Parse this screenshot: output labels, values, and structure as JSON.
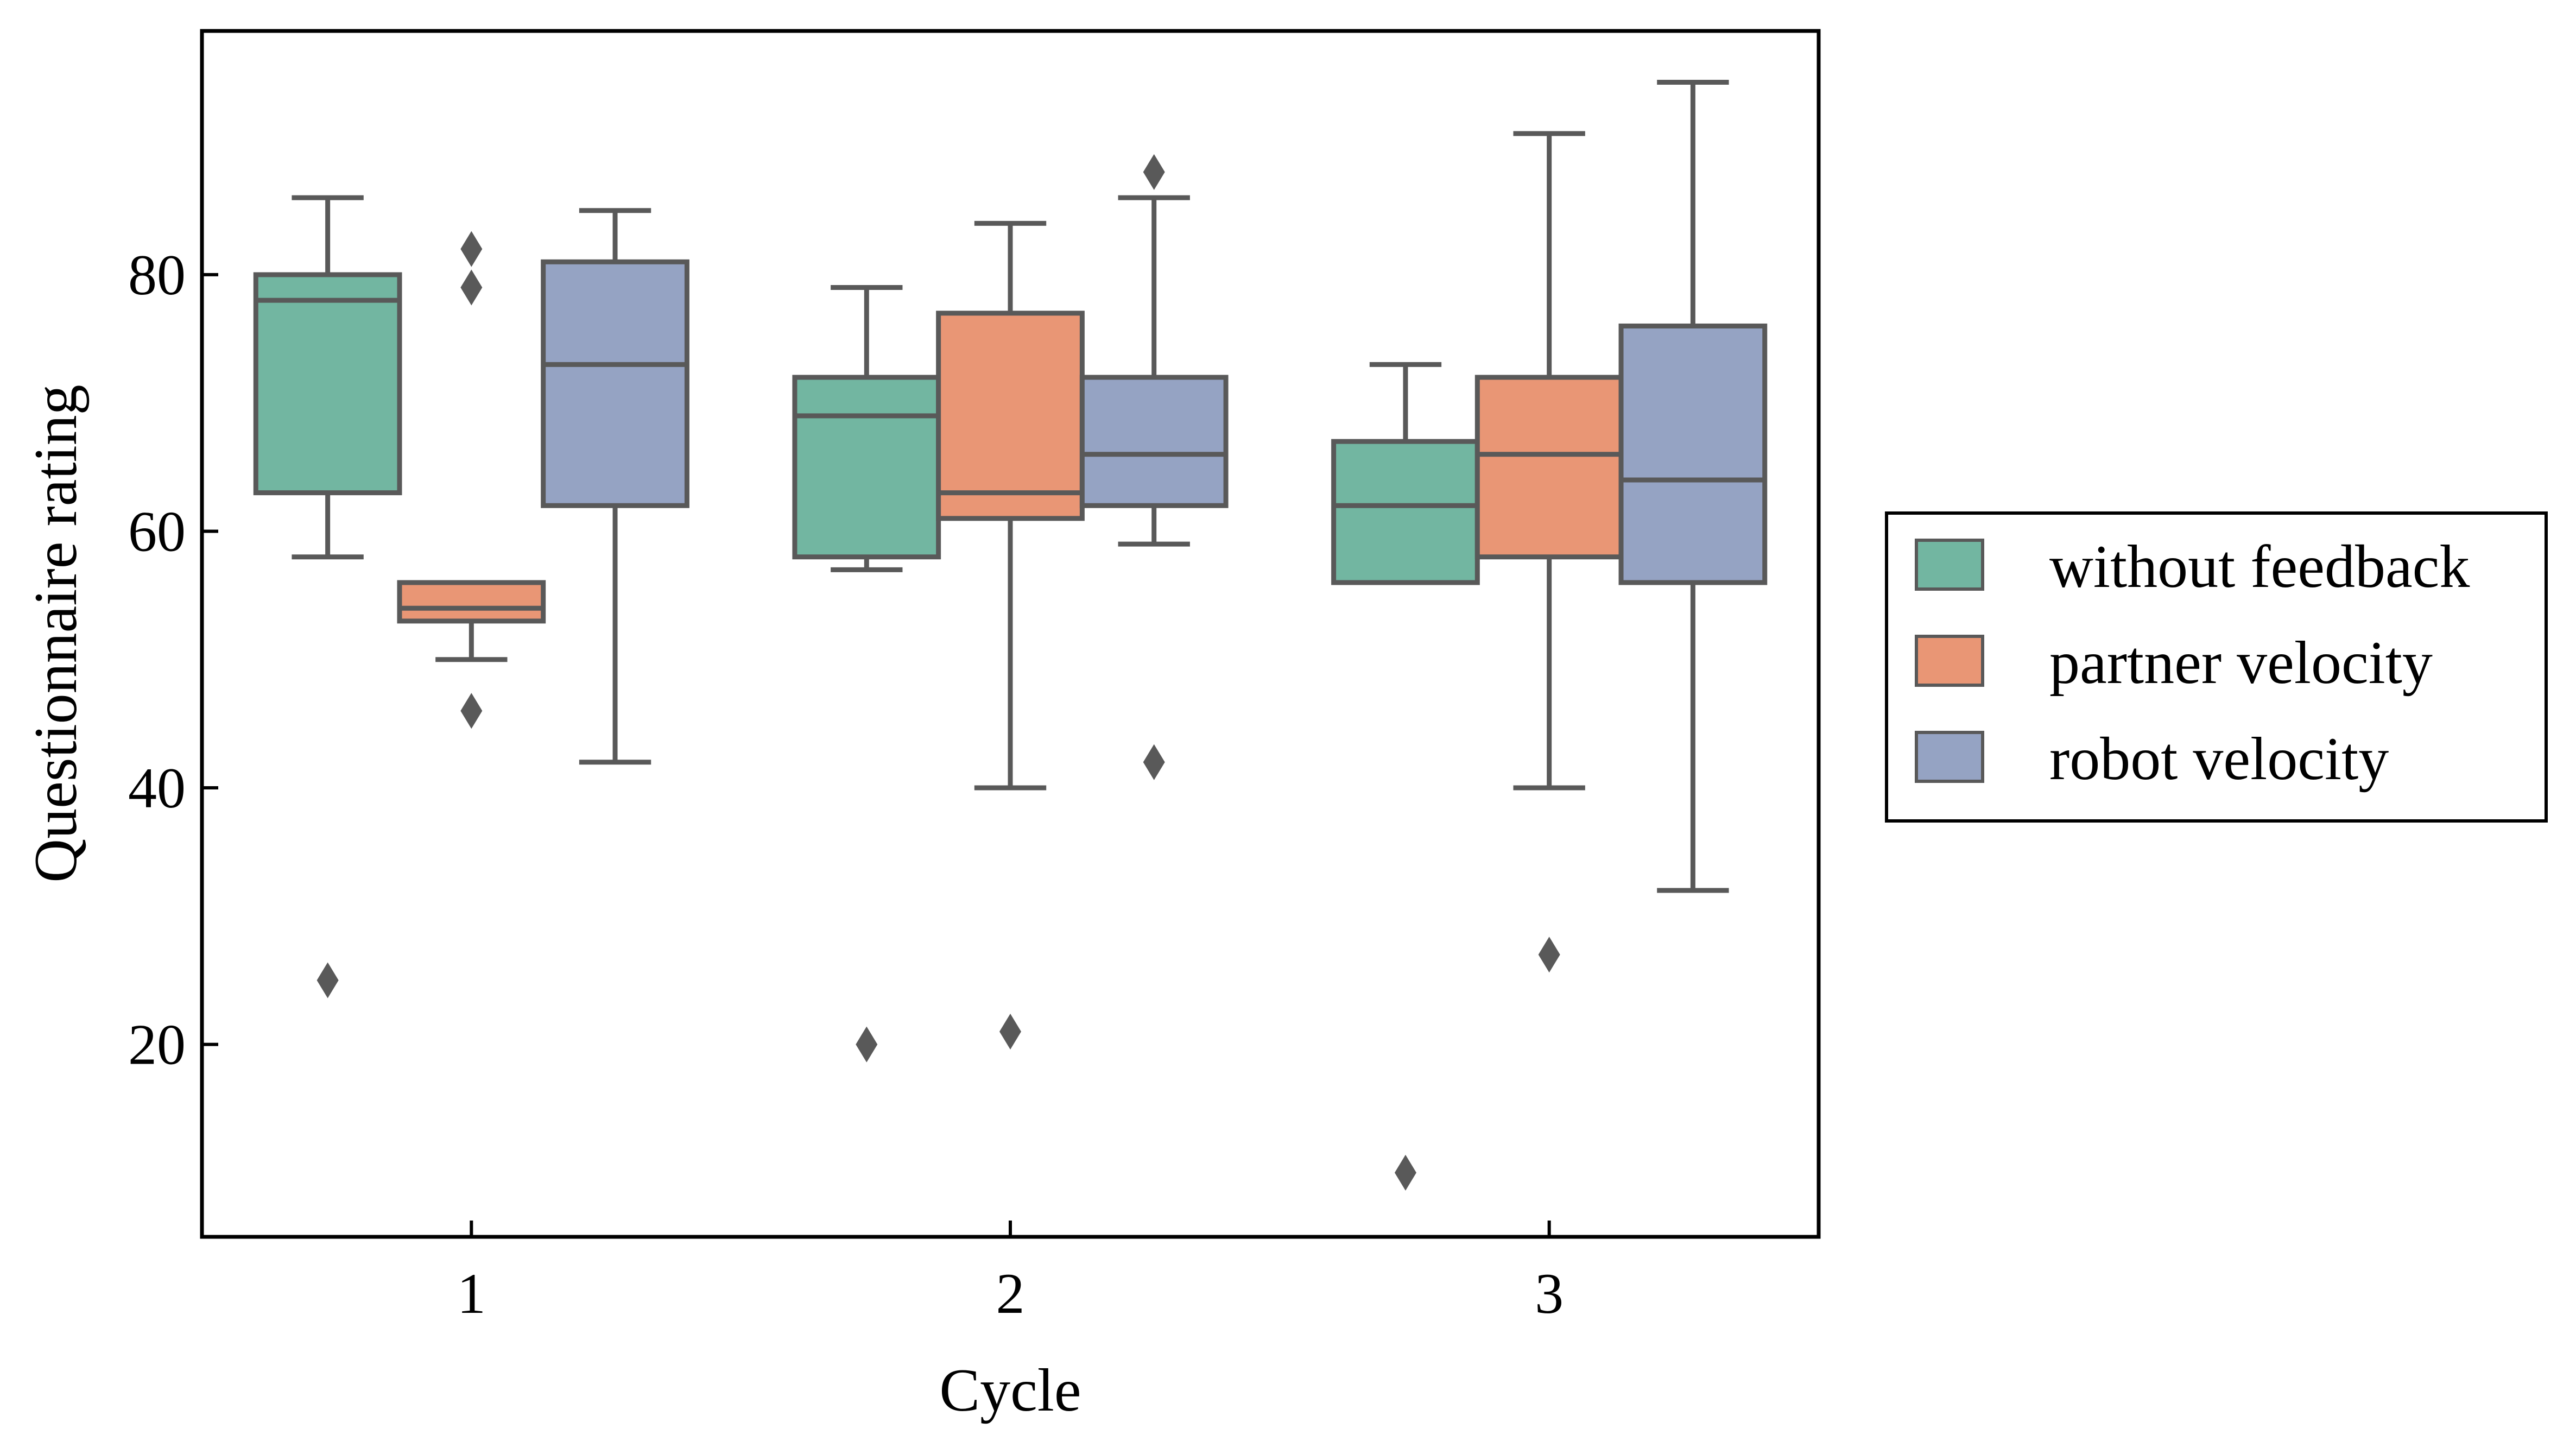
{
  "chart_data": {
    "type": "box",
    "xlabel": "Cycle",
    "ylabel": "Questionnaire rating",
    "categories": [
      "1",
      "2",
      "3"
    ],
    "ylim": [
      5,
      99
    ],
    "yticks": [
      20,
      40,
      60,
      80
    ],
    "grid": false,
    "legend_position": "outside-right",
    "series": [
      {
        "name": "without feedback",
        "color": "#72b6a1",
        "boxes": [
          {
            "whislo": 58,
            "q1": 63,
            "med": 78,
            "q3": 80,
            "whishi": 86,
            "fliers": [
              25
            ]
          },
          {
            "whislo": 57,
            "q1": 58,
            "med": 69,
            "q3": 72,
            "whishi": 79,
            "fliers": [
              20
            ]
          },
          {
            "whislo": 56,
            "q1": 56,
            "med": 62,
            "q3": 67,
            "whishi": 73,
            "fliers": [
              10
            ]
          }
        ]
      },
      {
        "name": "partner velocity",
        "color": "#e99675",
        "boxes": [
          {
            "whislo": 50,
            "q1": 53,
            "med": 54,
            "q3": 56,
            "whishi": 56,
            "fliers": [
              46,
              79,
              82
            ]
          },
          {
            "whislo": 40,
            "q1": 61,
            "med": 63,
            "q3": 77,
            "whishi": 84,
            "fliers": [
              21
            ]
          },
          {
            "whislo": 40,
            "q1": 58,
            "med": 66,
            "q3": 72,
            "whishi": 91,
            "fliers": [
              27
            ]
          }
        ]
      },
      {
        "name": "robot velocity",
        "color": "#95a3c3",
        "boxes": [
          {
            "whislo": 42,
            "q1": 62,
            "med": 73,
            "q3": 81,
            "whishi": 85,
            "fliers": []
          },
          {
            "whislo": 59,
            "q1": 62,
            "med": 66,
            "q3": 72,
            "whishi": 86,
            "fliers": [
              42,
              88
            ]
          },
          {
            "whislo": 32,
            "q1": 56,
            "med": 64,
            "q3": 76,
            "whishi": 95,
            "fliers": []
          }
        ]
      }
    ],
    "line_color": "#595959"
  }
}
